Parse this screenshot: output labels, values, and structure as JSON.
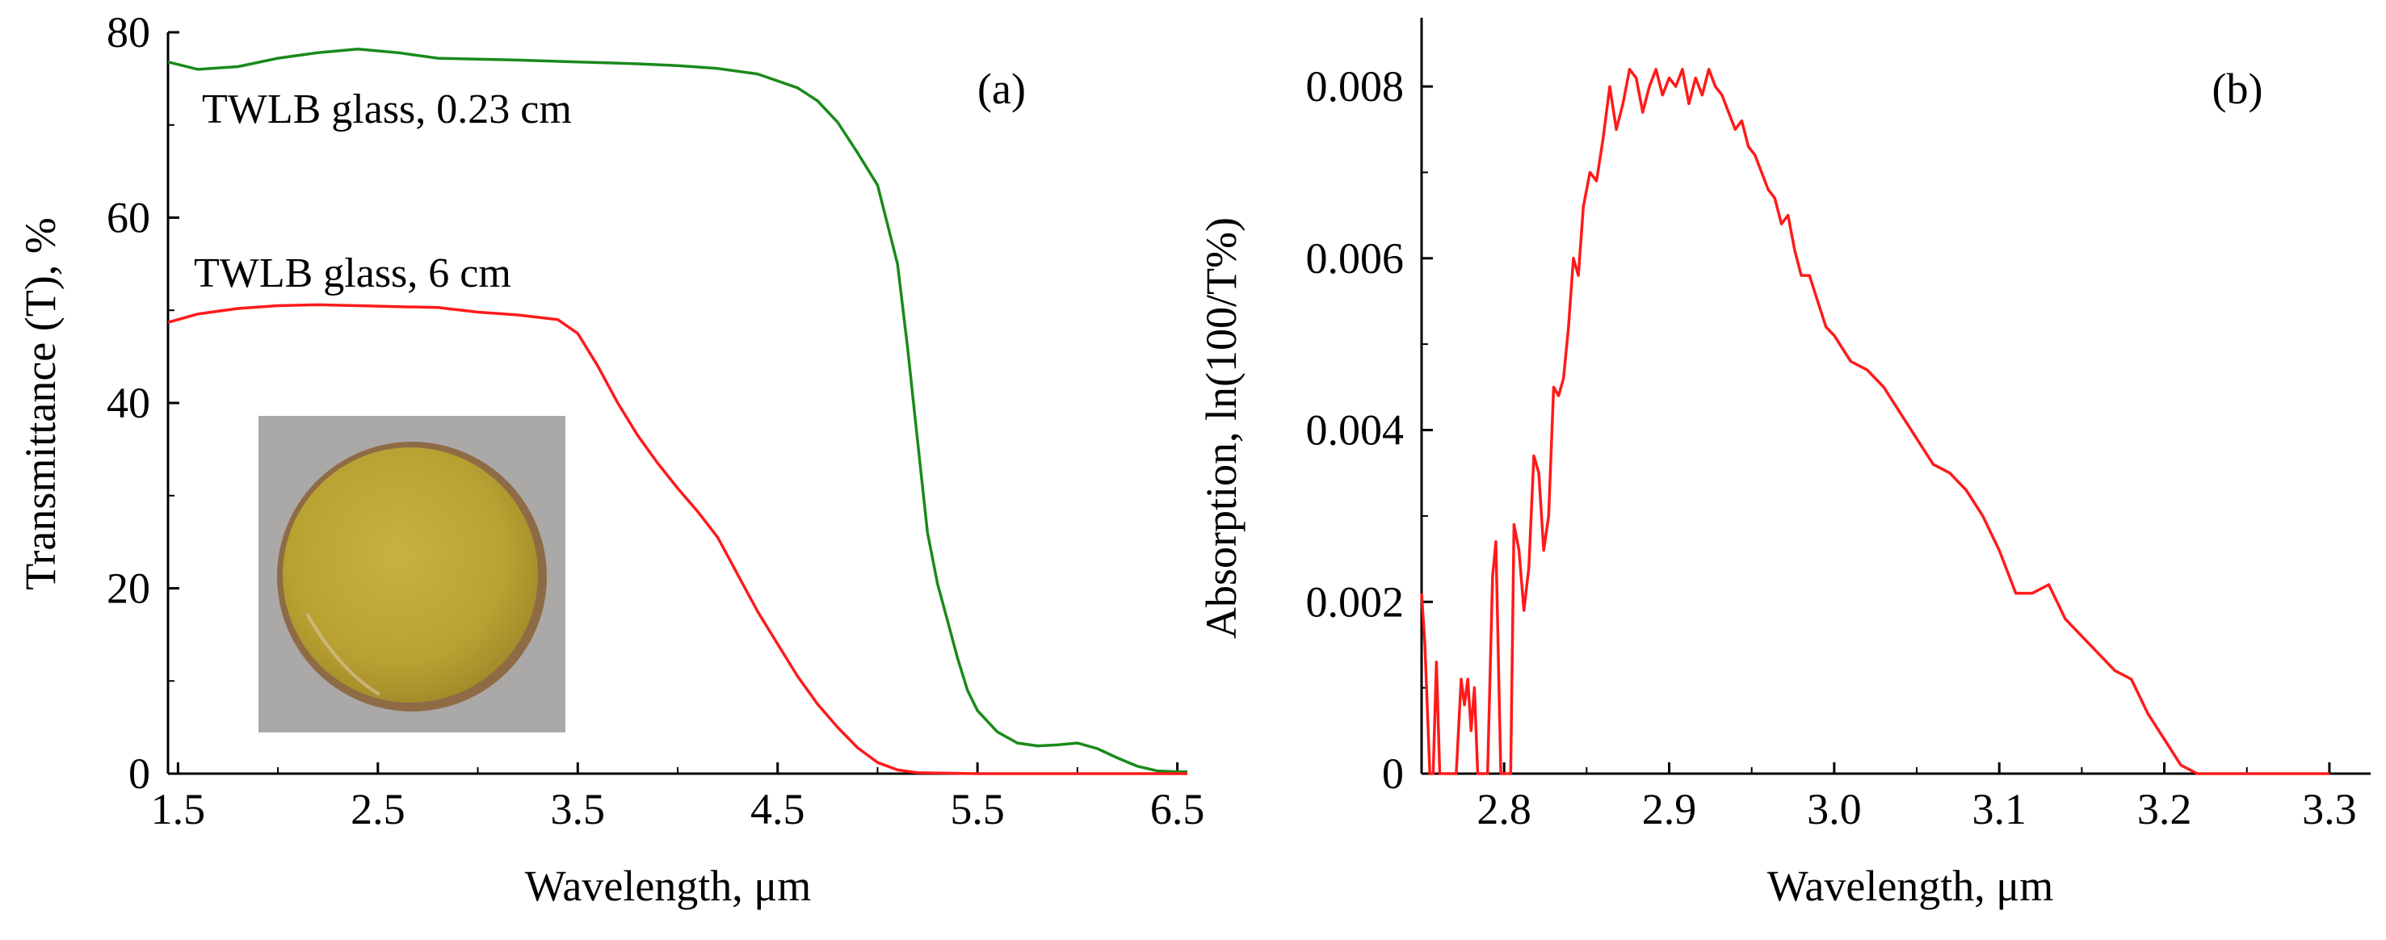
{
  "chart_data": [
    {
      "type": "line",
      "panel_label": "(a)",
      "xlabel": "Wavelength, μm",
      "ylabel": "Transmittance (T), %",
      "xlim": [
        1.45,
        6.55
      ],
      "ylim": [
        0,
        80
      ],
      "xticks": [
        1.5,
        2.5,
        3.5,
        4.5,
        5.5,
        6.5
      ],
      "xtick_labels": [
        "1.5",
        "2.5",
        "3.5",
        "4.5",
        "5.5",
        "6.5"
      ],
      "yticks": [
        0,
        20,
        40,
        60,
        80
      ],
      "ytick_labels": [
        "0",
        "20",
        "40",
        "60",
        "80"
      ],
      "grid": false,
      "inset": "photo of yellow glass disk",
      "series": [
        {
          "name": "TWLB glass, 0.23 cm",
          "color": "#1a8a1a",
          "x": [
            1.45,
            1.6,
            1.8,
            2.0,
            2.2,
            2.4,
            2.6,
            2.8,
            3.0,
            3.2,
            3.5,
            3.8,
            4.0,
            4.2,
            4.4,
            4.6,
            4.7,
            4.8,
            4.9,
            5.0,
            5.1,
            5.15,
            5.2,
            5.25,
            5.3,
            5.35,
            5.4,
            5.45,
            5.5,
            5.6,
            5.7,
            5.8,
            5.9,
            6.0,
            6.1,
            6.2,
            6.3,
            6.4,
            6.5,
            6.55
          ],
          "y": [
            76.8,
            76.0,
            76.3,
            77.2,
            77.8,
            78.2,
            77.8,
            77.2,
            77.1,
            77.0,
            76.8,
            76.6,
            76.4,
            76.1,
            75.5,
            74.0,
            72.6,
            70.3,
            67.0,
            63.5,
            55.0,
            46.0,
            36.0,
            26.0,
            20.5,
            16.5,
            12.5,
            9.0,
            6.8,
            4.5,
            3.3,
            3.0,
            3.1,
            3.3,
            2.7,
            1.7,
            0.8,
            0.3,
            0.2,
            0.2
          ]
        },
        {
          "name": "TWLB glass, 6 cm",
          "color": "#ff1a1a",
          "x": [
            1.45,
            1.6,
            1.8,
            2.0,
            2.2,
            2.4,
            2.6,
            2.8,
            3.0,
            3.2,
            3.4,
            3.5,
            3.6,
            3.7,
            3.8,
            3.9,
            4.0,
            4.1,
            4.2,
            4.25,
            4.3,
            4.4,
            4.5,
            4.6,
            4.7,
            4.8,
            4.9,
            5.0,
            5.1,
            5.2,
            5.5,
            6.0,
            6.5,
            6.55
          ],
          "y": [
            48.7,
            49.6,
            50.2,
            50.5,
            50.6,
            50.5,
            50.4,
            50.3,
            49.8,
            49.5,
            49.0,
            47.5,
            44.0,
            40.0,
            36.5,
            33.5,
            30.8,
            28.3,
            25.5,
            23.5,
            21.5,
            17.5,
            14.0,
            10.5,
            7.5,
            5.0,
            2.8,
            1.2,
            0.4,
            0.1,
            0.0,
            0.0,
            0.0,
            0.0
          ]
        }
      ]
    },
    {
      "type": "line",
      "panel_label": "(b)",
      "xlabel": "Wavelength, μm",
      "ylabel": "Absorption, ln(100/T%)",
      "xlim": [
        2.75,
        3.325
      ],
      "ylim": [
        0,
        0.0088
      ],
      "xticks": [
        2.8,
        2.9,
        3.0,
        3.1,
        3.2,
        3.3
      ],
      "xtick_labels": [
        "2.8",
        "2.9",
        "3.0",
        "3.1",
        "3.2",
        "3.3"
      ],
      "yticks": [
        0,
        0.002,
        0.004,
        0.006,
        0.008
      ],
      "ytick_labels": [
        "0",
        "0.002",
        "0.004",
        "0.006",
        "0.008"
      ],
      "grid": false,
      "series": [
        {
          "name": "Absorption",
          "color": "#ff1a1a",
          "x": [
            2.75,
            2.752,
            2.755,
            2.757,
            2.759,
            2.761,
            2.763,
            2.765,
            2.768,
            2.771,
            2.774,
            2.776,
            2.778,
            2.78,
            2.782,
            2.784,
            2.786,
            2.788,
            2.79,
            2.793,
            2.795,
            2.798,
            2.8,
            2.802,
            2.804,
            2.806,
            2.809,
            2.812,
            2.815,
            2.818,
            2.821,
            2.824,
            2.827,
            2.83,
            2.833,
            2.836,
            2.839,
            2.842,
            2.845,
            2.848,
            2.852,
            2.856,
            2.86,
            2.864,
            2.868,
            2.872,
            2.876,
            2.88,
            2.884,
            2.888,
            2.892,
            2.896,
            2.9,
            2.904,
            2.908,
            2.912,
            2.916,
            2.92,
            2.924,
            2.928,
            2.932,
            2.936,
            2.94,
            2.944,
            2.948,
            2.952,
            2.956,
            2.96,
            2.964,
            2.968,
            2.972,
            2.976,
            2.98,
            2.985,
            2.99,
            2.995,
            3.0,
            3.01,
            3.02,
            3.03,
            3.04,
            3.05,
            3.06,
            3.07,
            3.08,
            3.09,
            3.1,
            3.11,
            3.12,
            3.13,
            3.14,
            3.15,
            3.16,
            3.17,
            3.18,
            3.19,
            3.2,
            3.21,
            3.22,
            3.23,
            3.24,
            3.25,
            3.26,
            3.27,
            3.28,
            3.29,
            3.295,
            3.3
          ],
          "y": [
            0.0021,
            0.0015,
            0.0,
            0.0,
            0.0013,
            0.0,
            0.0,
            0.0,
            0.0,
            0.0,
            0.0011,
            0.0008,
            0.0011,
            0.0005,
            0.001,
            0.0,
            0.0,
            0.0,
            0.0,
            0.0023,
            0.0027,
            0.0,
            0.0,
            0.0,
            0.0,
            0.0029,
            0.0026,
            0.0019,
            0.0024,
            0.0037,
            0.0035,
            0.0026,
            0.003,
            0.0045,
            0.0044,
            0.0046,
            0.0052,
            0.006,
            0.0058,
            0.0066,
            0.007,
            0.0069,
            0.0074,
            0.008,
            0.0075,
            0.0078,
            0.0082,
            0.0081,
            0.0077,
            0.008,
            0.0082,
            0.0079,
            0.0081,
            0.008,
            0.0082,
            0.0078,
            0.0081,
            0.0079,
            0.0082,
            0.008,
            0.0079,
            0.0077,
            0.0075,
            0.0076,
            0.0073,
            0.0072,
            0.007,
            0.0068,
            0.0067,
            0.0064,
            0.0065,
            0.0061,
            0.0058,
            0.0058,
            0.0055,
            0.0052,
            0.0051,
            0.0048,
            0.0047,
            0.0045,
            0.0042,
            0.0039,
            0.0036,
            0.0035,
            0.0033,
            0.003,
            0.0026,
            0.0021,
            0.0021,
            0.0022,
            0.0018,
            0.0016,
            0.0014,
            0.0012,
            0.0011,
            0.0007,
            0.0004,
            0.0001,
            0.0,
            0.0,
            0.0,
            0.0,
            0.0,
            0.0,
            0.0,
            0.0,
            0.0,
            0.0
          ]
        }
      ]
    }
  ]
}
